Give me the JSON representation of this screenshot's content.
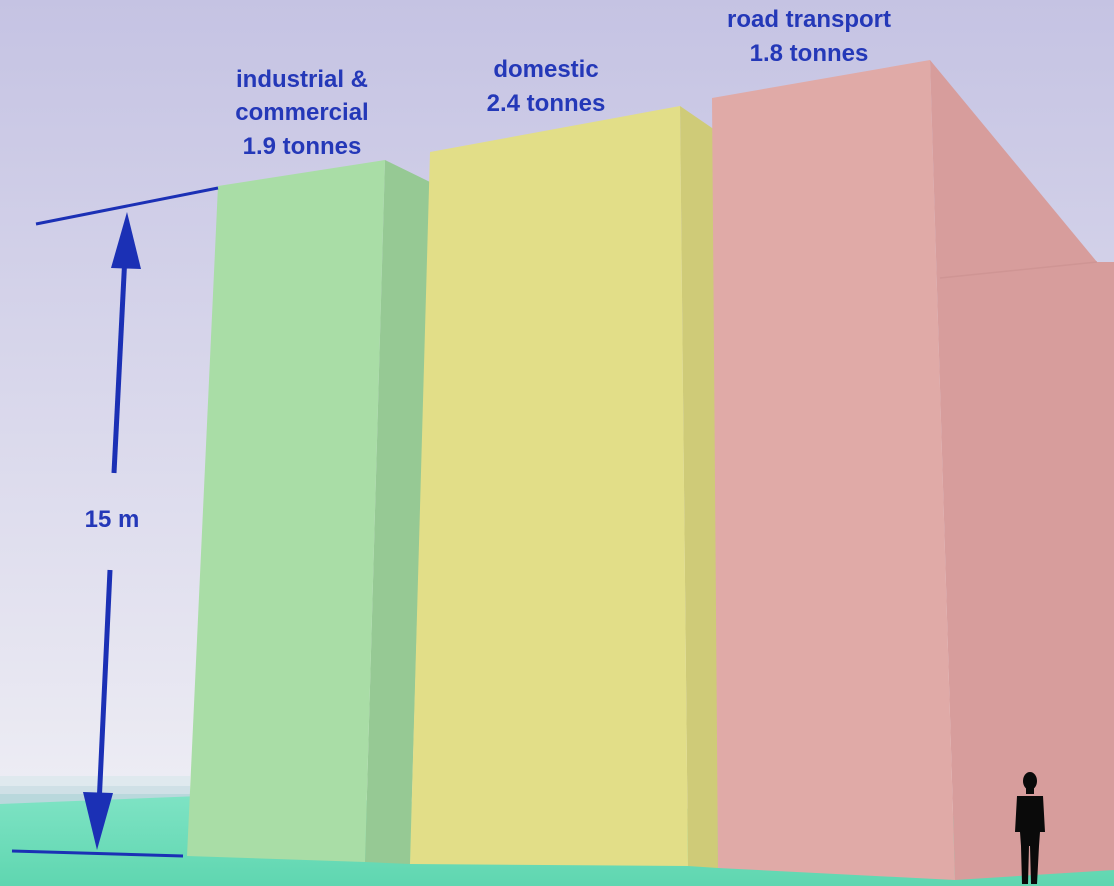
{
  "chart_data": {
    "type": "bar",
    "categories": [
      "industrial & commercial",
      "domestic",
      "road transport"
    ],
    "values": [
      1.9,
      2.4,
      1.8
    ],
    "unit": "tonnes",
    "labels": [
      {
        "lines": [
          "industrial &",
          "commercial",
          "1.9 tonnes"
        ]
      },
      {
        "lines": [
          "domestic",
          "2.4 tonnes"
        ]
      },
      {
        "lines": [
          "road transport",
          "1.8 tonnes"
        ]
      }
    ],
    "scale_marker": {
      "label": "15 m"
    }
  },
  "colors": {
    "industrial": "#a9dda6",
    "domestic": "#e2de88",
    "road": "#e0aaa7",
    "ground": "#6cdbb9",
    "sky_top": "#c6c4e4",
    "sky_bottom": "#eeeef6",
    "annotation": "#1b30b5"
  },
  "icons": {
    "person": "person-silhouette-icon"
  }
}
